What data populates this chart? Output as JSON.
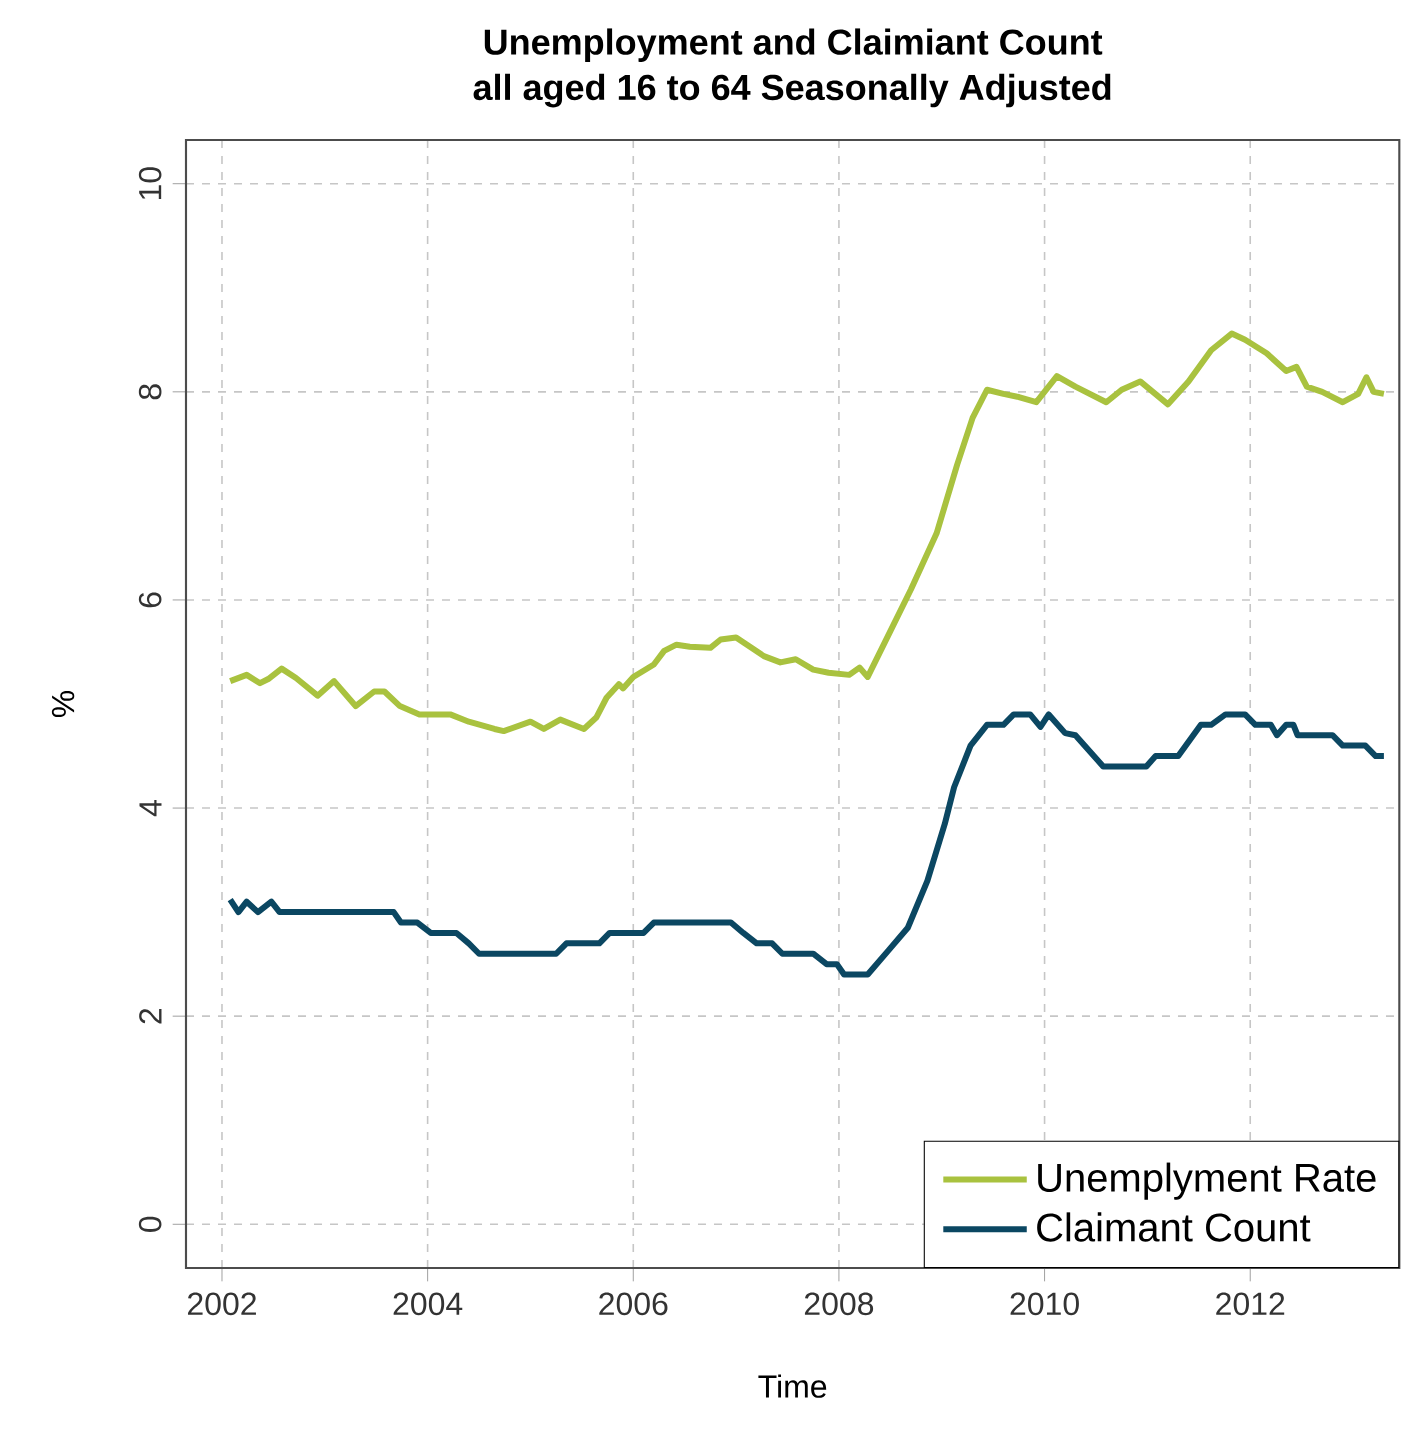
{
  "chart_data": {
    "type": "line",
    "title": "Unemployment and Claimiant Count",
    "subtitle": "all aged 16 to 64 Seasonally Adjusted",
    "xlabel": "Time",
    "ylabel": "%",
    "xlim": [
      2001.65,
      2013.45
    ],
    "ylim": [
      -0.42,
      10.42
    ],
    "xticks": [
      2002,
      2004,
      2006,
      2008,
      2010,
      2012
    ],
    "yticks": [
      0,
      2,
      4,
      6,
      8,
      10
    ],
    "grid": true,
    "legend": "bottom right",
    "marker": "none",
    "line_style": "solid",
    "series": [
      {
        "name": "Unemplyment Rate",
        "color": "#a9c23f",
        "x": [
          2002.08,
          2002.24,
          2002.37,
          2002.45,
          2002.58,
          2002.72,
          2002.93,
          2003.09,
          2003.3,
          2003.48,
          2003.58,
          2003.73,
          2003.92,
          2004.22,
          2004.4,
          2004.65,
          2004.74,
          2005.0,
          2005.13,
          2005.29,
          2005.52,
          2005.64,
          2005.74,
          2005.86,
          2005.9,
          2006.0,
          2006.2,
          2006.3,
          2006.42,
          2006.55,
          2006.75,
          2006.85,
          2007.0,
          2007.27,
          2007.43,
          2007.58,
          2007.75,
          2007.9,
          2008.1,
          2008.2,
          2008.28,
          2008.5,
          2008.7,
          2008.95,
          2009.15,
          2009.3,
          2009.44,
          2009.6,
          2009.75,
          2009.92,
          2010.12,
          2010.3,
          2010.6,
          2010.75,
          2010.93,
          2011.2,
          2011.4,
          2011.62,
          2011.82,
          2011.95,
          2012.16,
          2012.35,
          2012.45,
          2012.55,
          2012.7,
          2012.9,
          2013.05,
          2013.13,
          2013.2,
          2013.3
        ],
        "values": [
          5.22,
          5.28,
          5.2,
          5.24,
          5.34,
          5.25,
          5.08,
          5.22,
          4.98,
          5.12,
          5.12,
          4.98,
          4.9,
          4.9,
          4.83,
          4.76,
          4.74,
          4.83,
          4.76,
          4.85,
          4.76,
          4.87,
          5.06,
          5.19,
          5.15,
          5.26,
          5.38,
          5.51,
          5.57,
          5.55,
          5.54,
          5.62,
          5.64,
          5.46,
          5.4,
          5.43,
          5.33,
          5.3,
          5.28,
          5.35,
          5.26,
          5.7,
          6.1,
          6.64,
          7.3,
          7.75,
          8.02,
          7.98,
          7.95,
          7.9,
          8.15,
          8.05,
          7.9,
          8.02,
          8.1,
          7.88,
          8.1,
          8.4,
          8.56,
          8.5,
          8.37,
          8.2,
          8.24,
          8.05,
          8.0,
          7.9,
          7.98,
          8.14,
          8.0,
          7.98
        ]
      },
      {
        "name": "Claimant Count",
        "color": "#0b4762",
        "x": [
          2002.08,
          2002.16,
          2002.24,
          2002.35,
          2002.48,
          2002.56,
          2003.67,
          2003.74,
          2003.9,
          2004.03,
          2004.28,
          2004.4,
          2004.5,
          2005.25,
          2005.35,
          2005.67,
          2005.77,
          2006.1,
          2006.2,
          2006.95,
          2007.07,
          2007.2,
          2007.35,
          2007.45,
          2007.75,
          2007.88,
          2007.98,
          2008.05,
          2008.28,
          2008.48,
          2008.67,
          2008.86,
          2009.03,
          2009.12,
          2009.28,
          2009.44,
          2009.6,
          2009.7,
          2009.86,
          2009.96,
          2010.04,
          2010.2,
          2010.3,
          2010.57,
          2010.99,
          2011.08,
          2011.3,
          2011.52,
          2011.62,
          2011.76,
          2011.95,
          2012.05,
          2012.2,
          2012.26,
          2012.35,
          2012.42,
          2012.46,
          2012.8,
          2012.9,
          2013.12,
          2013.22,
          2013.3
        ],
        "values": [
          3.12,
          3.0,
          3.1,
          3.0,
          3.1,
          3.0,
          3.0,
          2.9,
          2.9,
          2.8,
          2.8,
          2.7,
          2.6,
          2.6,
          2.7,
          2.7,
          2.8,
          2.8,
          2.9,
          2.9,
          2.8,
          2.7,
          2.7,
          2.6,
          2.6,
          2.5,
          2.5,
          2.4,
          2.4,
          2.63,
          2.85,
          3.3,
          3.85,
          4.2,
          4.6,
          4.8,
          4.8,
          4.9,
          4.9,
          4.78,
          4.9,
          4.72,
          4.7,
          4.4,
          4.4,
          4.5,
          4.5,
          4.8,
          4.8,
          4.9,
          4.9,
          4.8,
          4.8,
          4.7,
          4.8,
          4.8,
          4.7,
          4.7,
          4.6,
          4.6,
          4.5,
          4.5
        ]
      }
    ]
  }
}
